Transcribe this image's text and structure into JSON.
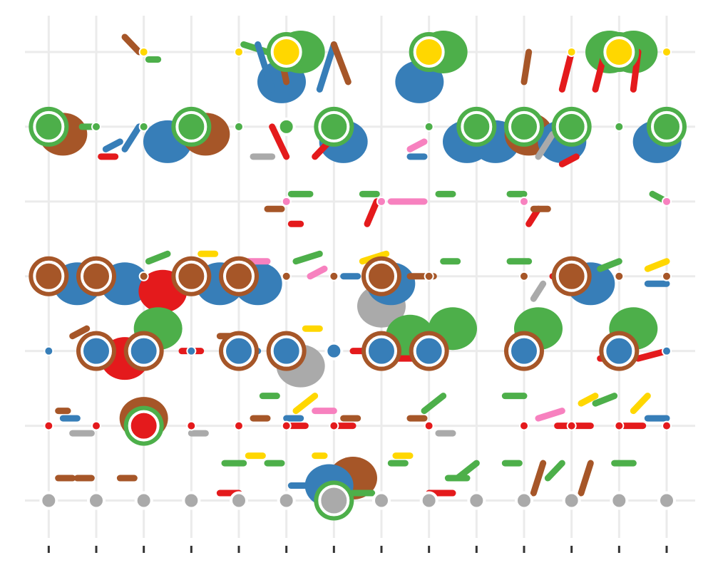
{
  "chart_data": {
    "type": "scatter",
    "title": "",
    "xlabel": "",
    "ylabel": "",
    "xlim": [
      0.5,
      14.6
    ],
    "ylim": [
      0.5,
      7.6
    ],
    "x_ticks": [
      1,
      2,
      3,
      4,
      5,
      6,
      7,
      8,
      9,
      10,
      11,
      12,
      13,
      14
    ],
    "y_ticks": [
      1,
      2,
      3,
      4,
      5,
      6,
      7
    ],
    "grid": true,
    "legend": "none",
    "colors": {
      "green": "#4daf4a",
      "brown": "#a65628",
      "blue": "#377eb8",
      "red": "#e41a1c",
      "yellow": "#ffd700",
      "gray": "#aaaaaa",
      "pink": "#f781bf"
    },
    "nodes": [
      {
        "col": 3,
        "row": 7,
        "size": 1,
        "color": "yellow"
      },
      {
        "col": 5,
        "row": 7,
        "size": 1,
        "color": "yellow"
      },
      {
        "col": 6,
        "row": 7,
        "size": 3,
        "color": "yellow"
      },
      {
        "col": 9,
        "row": 7,
        "size": 3,
        "color": "yellow"
      },
      {
        "col": 12,
        "row": 7,
        "size": 1,
        "color": "yellow"
      },
      {
        "col": 13,
        "row": 7,
        "size": 3,
        "color": "yellow"
      },
      {
        "col": 14,
        "row": 7,
        "size": 1,
        "color": "yellow"
      },
      {
        "col": 1,
        "row": 6,
        "size": 3,
        "color": "green"
      },
      {
        "col": 2,
        "row": 6,
        "size": 1,
        "color": "green"
      },
      {
        "col": 3,
        "row": 6,
        "size": 1,
        "color": "green"
      },
      {
        "col": 4,
        "row": 6,
        "size": 3,
        "color": "green"
      },
      {
        "col": 5,
        "row": 6,
        "size": 1,
        "color": "green"
      },
      {
        "col": 6,
        "row": 6,
        "size": 2,
        "color": "green"
      },
      {
        "col": 7,
        "row": 6,
        "size": 3,
        "color": "green"
      },
      {
        "col": 9,
        "row": 6,
        "size": 1,
        "color": "green"
      },
      {
        "col": 10,
        "row": 6,
        "size": 3,
        "color": "green"
      },
      {
        "col": 11,
        "row": 6,
        "size": 3,
        "color": "green"
      },
      {
        "col": 12,
        "row": 6,
        "size": 3,
        "color": "green"
      },
      {
        "col": 13,
        "row": 6,
        "size": 1,
        "color": "green"
      },
      {
        "col": 14,
        "row": 6,
        "size": 3,
        "color": "green"
      },
      {
        "col": 6,
        "row": 5,
        "size": 1,
        "color": "pink"
      },
      {
        "col": 8,
        "row": 5,
        "size": 1,
        "color": "pink"
      },
      {
        "col": 11,
        "row": 5,
        "size": 1,
        "color": "pink"
      },
      {
        "col": 14,
        "row": 5,
        "size": 1,
        "color": "pink"
      },
      {
        "col": 1,
        "row": 4,
        "size": 3,
        "color": "brown"
      },
      {
        "col": 2,
        "row": 4,
        "size": 3,
        "color": "brown"
      },
      {
        "col": 3,
        "row": 4,
        "size": 1,
        "color": "brown"
      },
      {
        "col": 4,
        "row": 4,
        "size": 3,
        "color": "brown"
      },
      {
        "col": 5,
        "row": 4,
        "size": 3,
        "color": "brown"
      },
      {
        "col": 6,
        "row": 4,
        "size": 1,
        "color": "brown"
      },
      {
        "col": 7,
        "row": 4,
        "size": 1,
        "color": "brown"
      },
      {
        "col": 8,
        "row": 4,
        "size": 3,
        "color": "brown"
      },
      {
        "col": 9,
        "row": 4,
        "size": 1,
        "color": "brown"
      },
      {
        "col": 11,
        "row": 4,
        "size": 1,
        "color": "brown"
      },
      {
        "col": 12,
        "row": 4,
        "size": 3,
        "color": "brown"
      },
      {
        "col": 13,
        "row": 4,
        "size": 1,
        "color": "brown"
      },
      {
        "col": 14,
        "row": 4,
        "size": 1,
        "color": "brown"
      },
      {
        "col": 1,
        "row": 3,
        "size": 1,
        "color": "blue"
      },
      {
        "col": 2,
        "row": 3,
        "size": 3,
        "color": "blue"
      },
      {
        "col": 3,
        "row": 3,
        "size": 3,
        "color": "blue"
      },
      {
        "col": 4,
        "row": 3,
        "size": 1,
        "color": "blue"
      },
      {
        "col": 5,
        "row": 3,
        "size": 3,
        "color": "blue"
      },
      {
        "col": 6,
        "row": 3,
        "size": 3,
        "color": "blue"
      },
      {
        "col": 7,
        "row": 3,
        "size": 2,
        "color": "blue"
      },
      {
        "col": 8,
        "row": 3,
        "size": 3,
        "color": "blue"
      },
      {
        "col": 9,
        "row": 3,
        "size": 3,
        "color": "blue"
      },
      {
        "col": 11,
        "row": 3,
        "size": 3,
        "color": "blue"
      },
      {
        "col": 13,
        "row": 3,
        "size": 3,
        "color": "blue"
      },
      {
        "col": 14,
        "row": 3,
        "size": 1,
        "color": "blue"
      },
      {
        "col": 1,
        "row": 2,
        "size": 1,
        "color": "red"
      },
      {
        "col": 2,
        "row": 2,
        "size": 1,
        "color": "red"
      },
      {
        "col": 3,
        "row": 2,
        "size": 3,
        "color": "red"
      },
      {
        "col": 4,
        "row": 2,
        "size": 1,
        "color": "red"
      },
      {
        "col": 5,
        "row": 2,
        "size": 1,
        "color": "red"
      },
      {
        "col": 6,
        "row": 2,
        "size": 1,
        "color": "red"
      },
      {
        "col": 7,
        "row": 2,
        "size": 1,
        "color": "red"
      },
      {
        "col": 9,
        "row": 2,
        "size": 1,
        "color": "red"
      },
      {
        "col": 11,
        "row": 2,
        "size": 1,
        "color": "red"
      },
      {
        "col": 12,
        "row": 2,
        "size": 1,
        "color": "red"
      },
      {
        "col": 13,
        "row": 2,
        "size": 1,
        "color": "red"
      },
      {
        "col": 14,
        "row": 2,
        "size": 1,
        "color": "red"
      },
      {
        "col": 1,
        "row": 1,
        "size": 2,
        "color": "gray"
      },
      {
        "col": 2,
        "row": 1,
        "size": 2,
        "color": "gray"
      },
      {
        "col": 3,
        "row": 1,
        "size": 2,
        "color": "gray"
      },
      {
        "col": 4,
        "row": 1,
        "size": 2,
        "color": "gray"
      },
      {
        "col": 5,
        "row": 1,
        "size": 2,
        "color": "gray"
      },
      {
        "col": 6,
        "row": 1,
        "size": 2,
        "color": "gray"
      },
      {
        "col": 7,
        "row": 1,
        "size": 3,
        "color": "gray"
      },
      {
        "col": 8,
        "row": 1,
        "size": 2,
        "color": "gray"
      },
      {
        "col": 9,
        "row": 1,
        "size": 2,
        "color": "gray"
      },
      {
        "col": 10,
        "row": 1,
        "size": 2,
        "color": "gray"
      },
      {
        "col": 11,
        "row": 1,
        "size": 2,
        "color": "gray"
      },
      {
        "col": 12,
        "row": 1,
        "size": 2,
        "color": "gray"
      },
      {
        "col": 13,
        "row": 1,
        "size": 2,
        "color": "gray"
      },
      {
        "col": 14,
        "row": 1,
        "size": 2,
        "color": "gray"
      }
    ],
    "blobs": [
      {
        "col": 5.9,
        "row": 6.6,
        "color": "blue"
      },
      {
        "col": 6.3,
        "row": 7.0,
        "color": "green"
      },
      {
        "col": 8.8,
        "row": 6.6,
        "color": "blue"
      },
      {
        "col": 9.3,
        "row": 7.0,
        "color": "green"
      },
      {
        "col": 12.8,
        "row": 7.0,
        "color": "green"
      },
      {
        "col": 13.3,
        "row": 7.0,
        "color": "green"
      },
      {
        "col": 1.3,
        "row": 5.9,
        "color": "brown"
      },
      {
        "col": 3.5,
        "row": 5.8,
        "color": "blue"
      },
      {
        "col": 4.3,
        "row": 5.9,
        "color": "brown"
      },
      {
        "col": 7.2,
        "row": 5.8,
        "color": "blue"
      },
      {
        "col": 9.8,
        "row": 5.8,
        "color": "blue"
      },
      {
        "col": 10.4,
        "row": 5.8,
        "color": "blue"
      },
      {
        "col": 11.1,
        "row": 5.9,
        "color": "brown"
      },
      {
        "col": 11.8,
        "row": 5.8,
        "color": "blue"
      },
      {
        "col": 13.8,
        "row": 5.8,
        "color": "blue"
      },
      {
        "col": 1.6,
        "row": 3.9,
        "color": "blue"
      },
      {
        "col": 2.6,
        "row": 3.9,
        "color": "blue"
      },
      {
        "col": 3.4,
        "row": 3.8,
        "color": "red"
      },
      {
        "col": 4.6,
        "row": 3.9,
        "color": "blue"
      },
      {
        "col": 5.4,
        "row": 3.9,
        "color": "blue"
      },
      {
        "col": 8.0,
        "row": 3.6,
        "color": "gray"
      },
      {
        "col": 8.2,
        "row": 3.9,
        "color": "blue"
      },
      {
        "col": 12.4,
        "row": 3.9,
        "color": "blue"
      },
      {
        "col": 2.6,
        "row": 2.9,
        "color": "red"
      },
      {
        "col": 3.3,
        "row": 3.3,
        "color": "green"
      },
      {
        "col": 6.3,
        "row": 2.8,
        "color": "gray"
      },
      {
        "col": 8.6,
        "row": 3.2,
        "color": "green"
      },
      {
        "col": 9.5,
        "row": 3.3,
        "color": "green"
      },
      {
        "col": 11.3,
        "row": 3.3,
        "color": "green"
      },
      {
        "col": 13.3,
        "row": 3.3,
        "color": "green"
      },
      {
        "col": 3.0,
        "row": 2.1,
        "color": "brown"
      },
      {
        "col": 7.4,
        "row": 1.3,
        "color": "brown"
      },
      {
        "col": 6.9,
        "row": 1.2,
        "color": "blue"
      }
    ],
    "strokes": [
      [
        2.6,
        7.2,
        2.9,
        7.0,
        "brown"
      ],
      [
        3.1,
        6.9,
        3.3,
        6.9,
        "green"
      ],
      [
        5.1,
        7.1,
        5.6,
        7.0,
        "green"
      ],
      [
        5.4,
        7.1,
        5.7,
        6.5,
        "blue"
      ],
      [
        5.9,
        6.9,
        6.0,
        6.6,
        "brown"
      ],
      [
        6.7,
        6.5,
        7.0,
        7.1,
        "blue"
      ],
      [
        7.0,
        7.1,
        7.3,
        6.6,
        "brown"
      ],
      [
        11.0,
        6.6,
        11.1,
        7.0,
        "brown"
      ],
      [
        11.8,
        6.5,
        12.0,
        7.0,
        "red"
      ],
      [
        12.5,
        6.5,
        12.7,
        7.0,
        "red"
      ],
      [
        13.3,
        6.5,
        13.4,
        7.0,
        "red"
      ],
      [
        1.7,
        6.0,
        2.0,
        6.0,
        "green"
      ],
      [
        2.2,
        5.7,
        2.5,
        5.8,
        "blue"
      ],
      [
        2.1,
        5.6,
        2.4,
        5.6,
        "red"
      ],
      [
        2.6,
        5.7,
        2.9,
        6.0,
        "blue"
      ],
      [
        5.3,
        5.6,
        5.7,
        5.6,
        "gray"
      ],
      [
        5.7,
        6.0,
        6.0,
        5.6,
        "red"
      ],
      [
        6.6,
        5.6,
        6.9,
        5.8,
        "red"
      ],
      [
        8.6,
        5.7,
        8.9,
        5.8,
        "pink"
      ],
      [
        8.6,
        5.6,
        8.9,
        5.6,
        "blue"
      ],
      [
        11.3,
        5.6,
        11.6,
        5.9,
        "gray"
      ],
      [
        11.8,
        5.5,
        12.1,
        5.6,
        "red"
      ],
      [
        5.6,
        4.9,
        5.9,
        4.9,
        "brown"
      ],
      [
        6.1,
        5.1,
        6.5,
        5.1,
        "green"
      ],
      [
        6.1,
        4.7,
        6.3,
        4.7,
        "red"
      ],
      [
        7.6,
        5.1,
        7.9,
        5.1,
        "green"
      ],
      [
        7.7,
        4.7,
        7.9,
        5.0,
        "red"
      ],
      [
        8.2,
        5.0,
        8.9,
        5.0,
        "pink"
      ],
      [
        9.2,
        5.1,
        9.5,
        5.1,
        "green"
      ],
      [
        10.7,
        5.1,
        11.0,
        5.1,
        "green"
      ],
      [
        11.1,
        4.7,
        11.3,
        4.9,
        "red"
      ],
      [
        11.2,
        4.9,
        11.5,
        4.9,
        "brown"
      ],
      [
        13.7,
        5.1,
        14.0,
        5.0,
        "green"
      ],
      [
        3.1,
        4.2,
        3.5,
        4.3,
        "green"
      ],
      [
        4.2,
        4.3,
        4.5,
        4.3,
        "yellow"
      ],
      [
        5.2,
        4.2,
        5.6,
        4.2,
        "pink"
      ],
      [
        6.2,
        4.2,
        6.7,
        4.3,
        "green"
      ],
      [
        6.5,
        4.0,
        6.8,
        4.1,
        "pink"
      ],
      [
        7.2,
        4.0,
        7.5,
        4.0,
        "blue"
      ],
      [
        7.6,
        4.2,
        8.1,
        4.3,
        "yellow"
      ],
      [
        8.6,
        4.0,
        9.1,
        4.0,
        "brown"
      ],
      [
        9.3,
        4.2,
        9.6,
        4.2,
        "green"
      ],
      [
        10.7,
        4.2,
        11.1,
        4.2,
        "green"
      ],
      [
        11.2,
        3.7,
        11.4,
        3.9,
        "gray"
      ],
      [
        11.6,
        4.0,
        12.1,
        4.0,
        "red"
      ],
      [
        12.6,
        4.1,
        13.0,
        4.2,
        "green"
      ],
      [
        13.6,
        4.1,
        14.0,
        4.2,
        "yellow"
      ],
      [
        13.6,
        3.9,
        14.0,
        3.9,
        "blue"
      ],
      [
        1.5,
        3.2,
        1.8,
        3.3,
        "brown"
      ],
      [
        3.8,
        3.0,
        4.2,
        3.0,
        "red"
      ],
      [
        4.6,
        3.2,
        5.0,
        3.2,
        "brown"
      ],
      [
        5.0,
        3.0,
        5.4,
        3.0,
        "blue"
      ],
      [
        6.4,
        3.3,
        6.7,
        3.3,
        "yellow"
      ],
      [
        7.4,
        3.0,
        8.0,
        3.0,
        "red"
      ],
      [
        8.3,
        2.9,
        8.7,
        2.9,
        "red"
      ],
      [
        12.6,
        2.9,
        13.0,
        2.9,
        "red"
      ],
      [
        13.4,
        2.9,
        14.0,
        3.0,
        "red"
      ],
      [
        1.2,
        2.2,
        1.4,
        2.2,
        "brown"
      ],
      [
        1.3,
        2.1,
        1.6,
        2.1,
        "blue"
      ],
      [
        1.5,
        1.9,
        1.9,
        1.9,
        "gray"
      ],
      [
        4.0,
        1.9,
        4.3,
        1.9,
        "gray"
      ],
      [
        5.3,
        2.1,
        5.6,
        2.1,
        "brown"
      ],
      [
        5.5,
        2.4,
        5.8,
        2.4,
        "green"
      ],
      [
        6.2,
        2.2,
        6.6,
        2.4,
        "yellow"
      ],
      [
        6.0,
        2.1,
        6.3,
        2.1,
        "blue"
      ],
      [
        6.1,
        2.0,
        6.4,
        2.0,
        "red"
      ],
      [
        6.6,
        2.2,
        7.0,
        2.2,
        "pink"
      ],
      [
        7.2,
        2.1,
        7.5,
        2.1,
        "brown"
      ],
      [
        7.0,
        2.0,
        7.4,
        2.0,
        "red"
      ],
      [
        8.6,
        2.1,
        8.9,
        2.1,
        "brown"
      ],
      [
        8.9,
        2.2,
        9.3,
        2.4,
        "green"
      ],
      [
        9.2,
        1.9,
        9.5,
        1.9,
        "gray"
      ],
      [
        10.6,
        2.4,
        11.0,
        2.4,
        "green"
      ],
      [
        11.3,
        2.1,
        11.8,
        2.2,
        "pink"
      ],
      [
        11.7,
        2.0,
        12.4,
        2.0,
        "red"
      ],
      [
        12.2,
        2.3,
        12.5,
        2.4,
        "yellow"
      ],
      [
        12.5,
        2.3,
        12.9,
        2.4,
        "green"
      ],
      [
        13.3,
        2.2,
        13.6,
        2.4,
        "yellow"
      ],
      [
        13.6,
        2.1,
        14.0,
        2.1,
        "blue"
      ],
      [
        13.1,
        2.0,
        13.5,
        2.0,
        "red"
      ],
      [
        1.2,
        1.3,
        1.5,
        1.3,
        "brown"
      ],
      [
        1.6,
        1.3,
        1.9,
        1.3,
        "brown"
      ],
      [
        2.5,
        1.3,
        2.8,
        1.3,
        "brown"
      ],
      [
        4.6,
        1.1,
        5.0,
        1.1,
        "red"
      ],
      [
        4.7,
        1.5,
        5.1,
        1.5,
        "green"
      ],
      [
        5.2,
        1.6,
        5.5,
        1.6,
        "yellow"
      ],
      [
        5.6,
        1.5,
        5.9,
        1.5,
        "green"
      ],
      [
        6.1,
        1.2,
        6.4,
        1.2,
        "blue"
      ],
      [
        6.6,
        1.6,
        6.8,
        1.6,
        "yellow"
      ],
      [
        7.4,
        1.1,
        7.8,
        1.1,
        "green"
      ],
      [
        8.2,
        1.5,
        8.5,
        1.5,
        "green"
      ],
      [
        8.3,
        1.6,
        8.6,
        1.6,
        "yellow"
      ],
      [
        9.6,
        1.3,
        10.0,
        1.5,
        "green"
      ],
      [
        10.6,
        1.5,
        10.9,
        1.5,
        "green"
      ],
      [
        11.5,
        1.3,
        11.8,
        1.5,
        "green"
      ],
      [
        11.2,
        1.1,
        11.4,
        1.5,
        "brown"
      ],
      [
        12.2,
        1.1,
        12.4,
        1.5,
        "brown"
      ],
      [
        12.9,
        1.5,
        13.3,
        1.5,
        "green"
      ],
      [
        9.0,
        1.1,
        9.5,
        1.1,
        "red"
      ],
      [
        9.4,
        1.3,
        9.8,
        1.3,
        "green"
      ]
    ]
  }
}
